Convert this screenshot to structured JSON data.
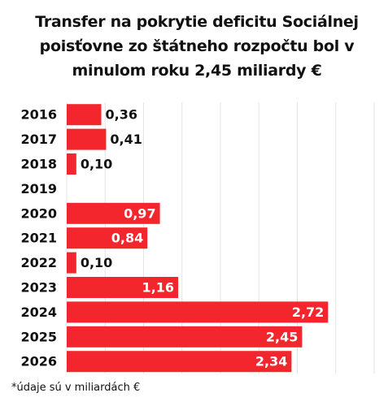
{
  "chart_data": {
    "type": "hbar",
    "title": "Transfer na pokrytie deficitu Sociálnej poisťovne zo štátneho rozpočtu bol v minulom roku 2,45 miliardy €",
    "footnote": "*údaje sú v miliardách €",
    "categories": [
      "2016",
      "2017",
      "2018",
      "2019",
      "2020",
      "2021",
      "2022",
      "2023",
      "2024",
      "2025",
      "2026"
    ],
    "values": [
      0.36,
      0.41,
      0.1,
      null,
      0.97,
      0.84,
      0.1,
      1.16,
      2.72,
      2.45,
      2.34
    ],
    "value_labels": [
      "0,36",
      "0,41",
      "0,10",
      null,
      "0,97",
      "0,84",
      "0,10",
      "1,16",
      "2,72",
      "2,45",
      "2,34"
    ],
    "color": "#f2262c",
    "xlim": [
      0,
      3.2
    ],
    "xticks": [
      0,
      0.4,
      0.8,
      1.2,
      1.6,
      2.0,
      2.4,
      2.8,
      3.2
    ],
    "grid": true
  }
}
